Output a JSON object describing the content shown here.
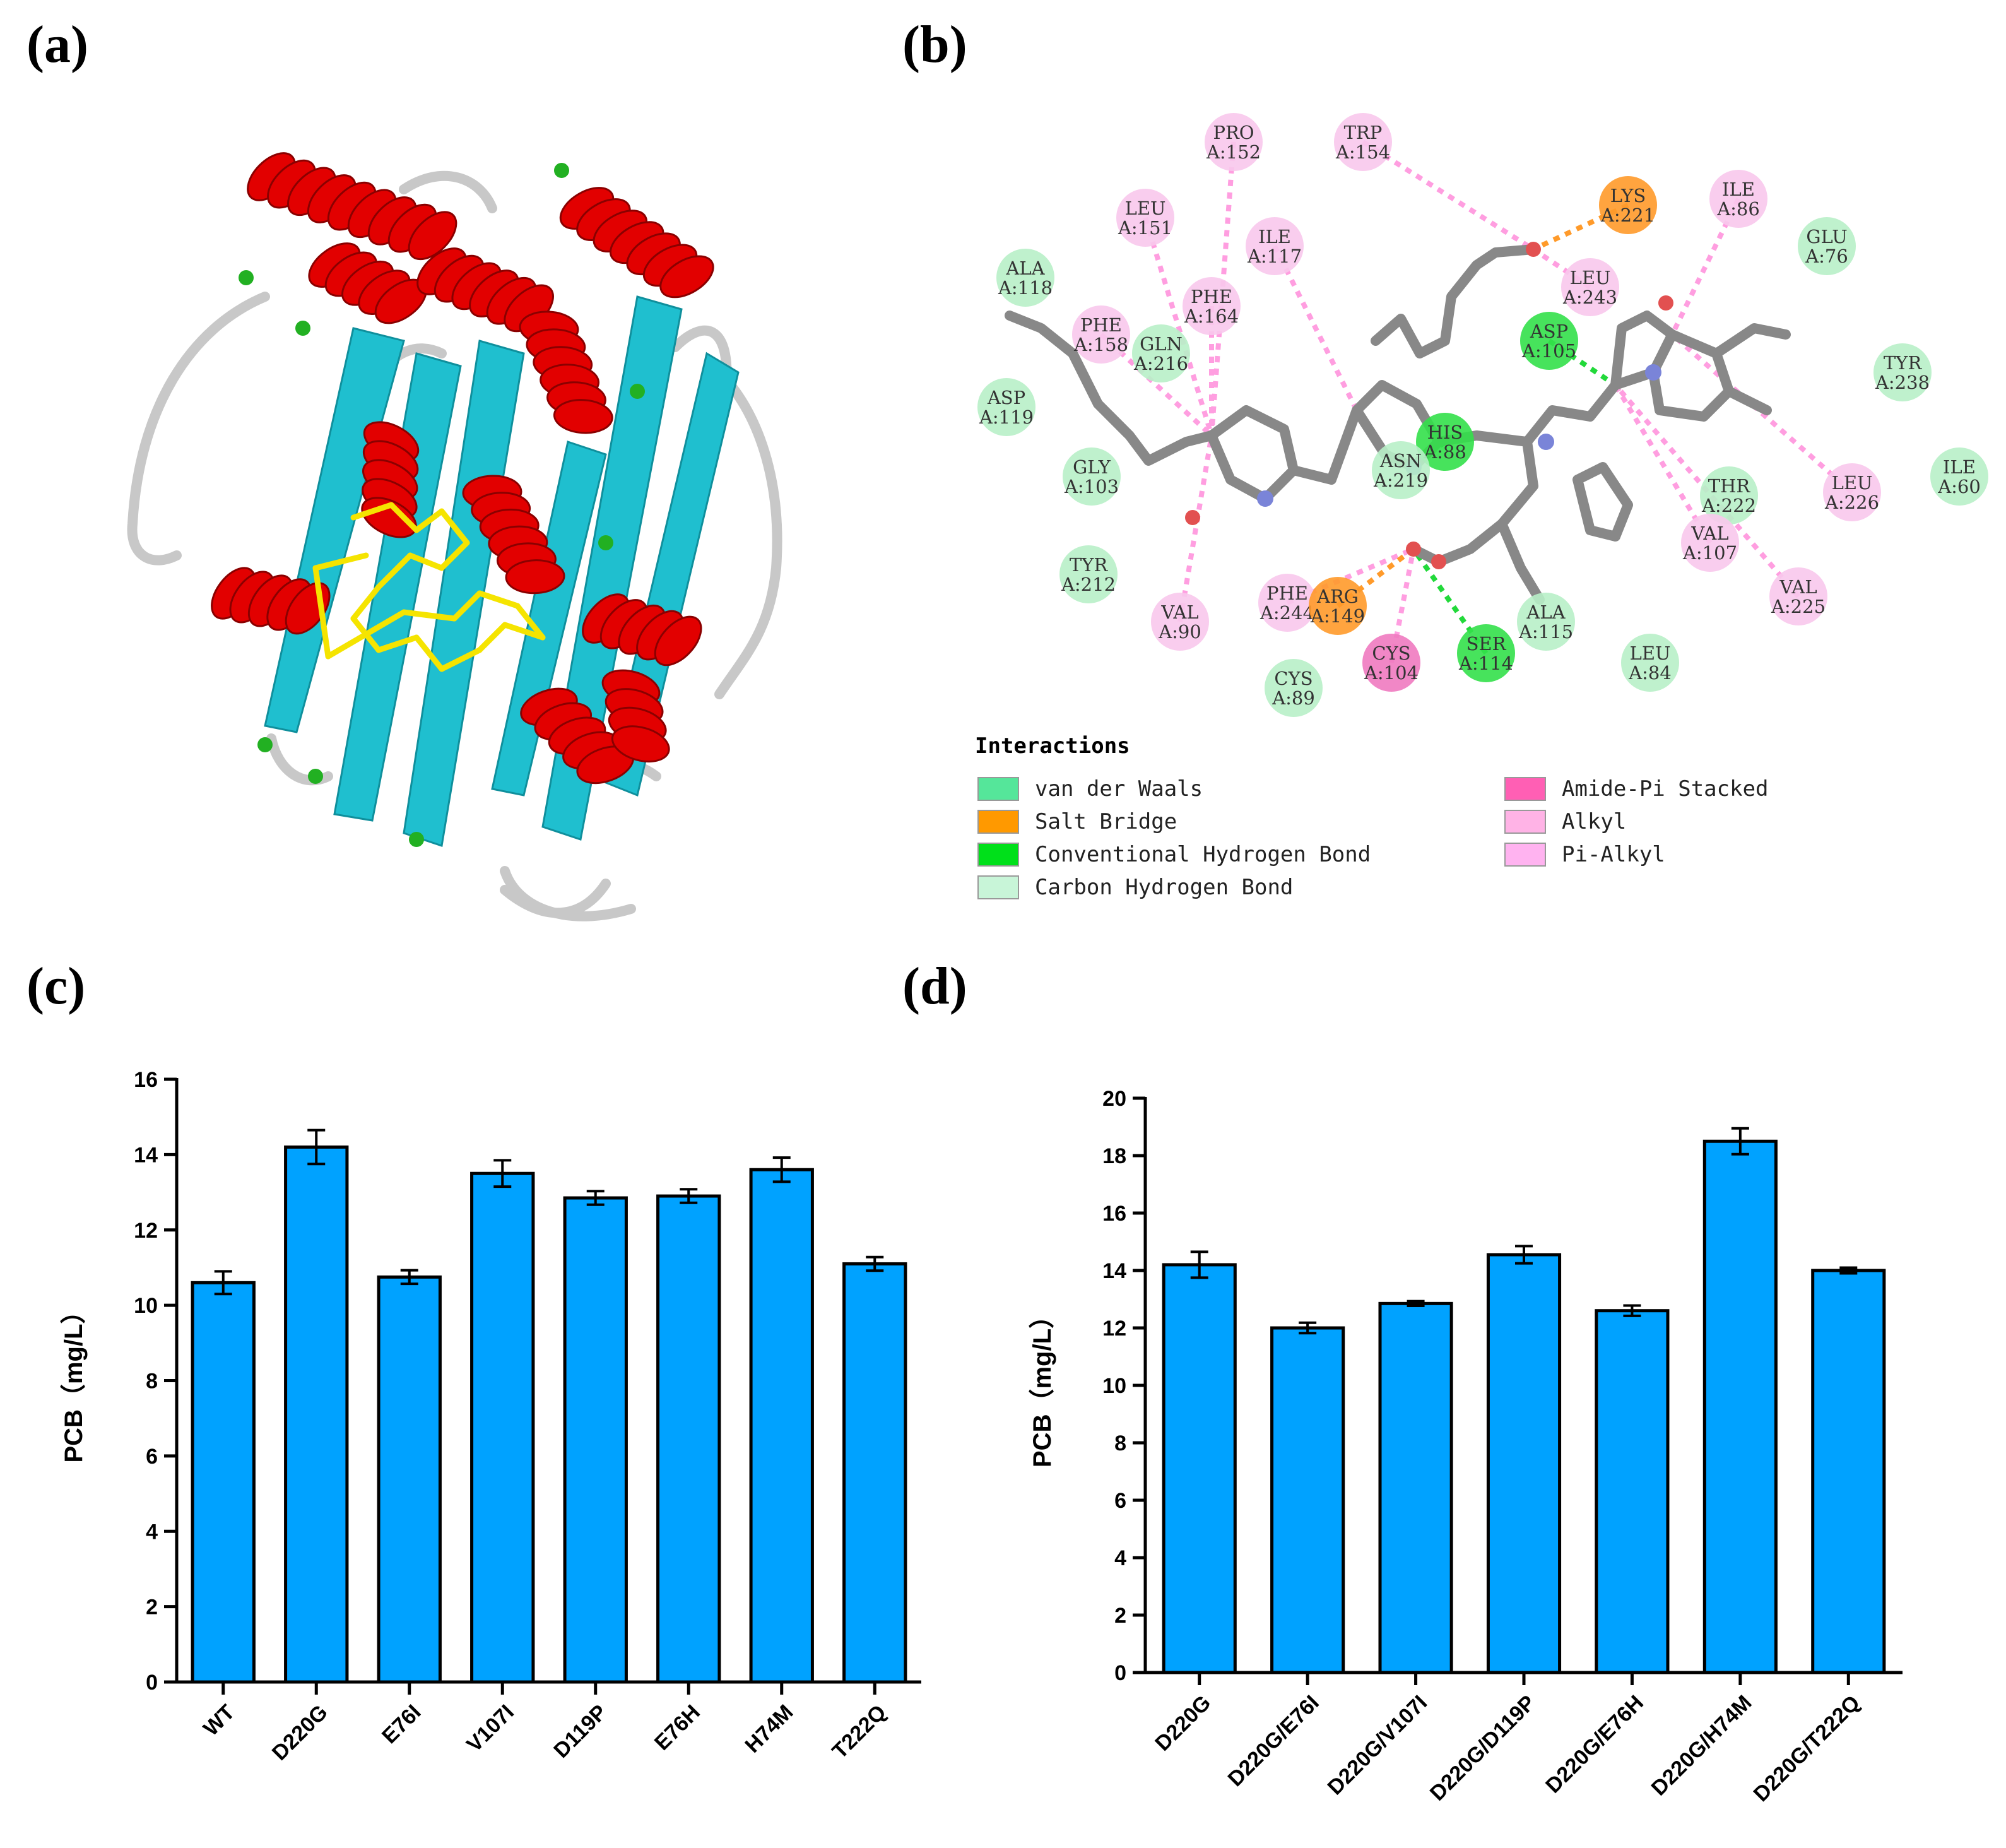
{
  "panels": {
    "a": "(a)",
    "b": "(b)",
    "c": "(c)",
    "d": "(d)"
  },
  "interactions": {
    "title": "Interactions",
    "legend": [
      {
        "label": "van der Waals",
        "color": "#55e69a"
      },
      {
        "label": "Salt Bridge",
        "color": "#ff9900"
      },
      {
        "label": "Conventional Hydrogen Bond",
        "color": "#00e01a"
      },
      {
        "label": "Carbon Hydrogen Bond",
        "color": "#c8f5d8"
      },
      {
        "label": "Amide-Pi Stacked",
        "color": "#ff5fb4"
      },
      {
        "label": "Alkyl",
        "color": "#ffb3e6"
      },
      {
        "label": "Pi-Alkyl",
        "color": "#ffb3f0"
      }
    ],
    "residues": [
      {
        "name": "PRO",
        "id": "A:152",
        "type": "alkyl"
      },
      {
        "name": "TRP",
        "id": "A:154",
        "type": "alkyl"
      },
      {
        "name": "LYS",
        "id": "A:221",
        "type": "salt"
      },
      {
        "name": "ILE",
        "id": "A:86",
        "type": "alkyl"
      },
      {
        "name": "LEU",
        "id": "A:151",
        "type": "alkyl"
      },
      {
        "name": "ILE",
        "id": "A:117",
        "type": "alkyl"
      },
      {
        "name": "LEU",
        "id": "A:243",
        "type": "alkyl"
      },
      {
        "name": "GLU",
        "id": "A:76",
        "type": "vdw"
      },
      {
        "name": "ALA",
        "id": "A:118",
        "type": "vdw"
      },
      {
        "name": "PHE",
        "id": "A:164",
        "type": "alkyl"
      },
      {
        "name": "ASP",
        "id": "A:105",
        "type": "hbond"
      },
      {
        "name": "PHE",
        "id": "A:158",
        "type": "alkyl"
      },
      {
        "name": "GLN",
        "id": "A:216",
        "type": "vdw"
      },
      {
        "name": "TYR",
        "id": "A:238",
        "type": "vdw"
      },
      {
        "name": "ASP",
        "id": "A:119",
        "type": "vdw"
      },
      {
        "name": "HIS",
        "id": "A:88",
        "type": "hbond"
      },
      {
        "name": "ASN",
        "id": "A:219",
        "type": "vdw"
      },
      {
        "name": "GLY",
        "id": "A:103",
        "type": "vdw"
      },
      {
        "name": "THR",
        "id": "A:222",
        "type": "vdw"
      },
      {
        "name": "LEU",
        "id": "A:226",
        "type": "alkyl"
      },
      {
        "name": "ILE",
        "id": "A:60",
        "type": "vdw"
      },
      {
        "name": "VAL",
        "id": "A:107",
        "type": "alkyl"
      },
      {
        "name": "TYR",
        "id": "A:212",
        "type": "vdw"
      },
      {
        "name": "VAL",
        "id": "A:90",
        "type": "alkyl"
      },
      {
        "name": "PHE",
        "id": "A:244",
        "type": "alkyl"
      },
      {
        "name": "ARG",
        "id": "A:149",
        "type": "salt"
      },
      {
        "name": "VAL",
        "id": "A:225",
        "type": "alkyl"
      },
      {
        "name": "ALA",
        "id": "A:115",
        "type": "vdw"
      },
      {
        "name": "SER",
        "id": "A:114",
        "type": "hbond"
      },
      {
        "name": "CYS",
        "id": "A:104",
        "type": "amide"
      },
      {
        "name": "LEU",
        "id": "A:84",
        "type": "vdw"
      },
      {
        "name": "CYS",
        "id": "A:89",
        "type": "vdw"
      }
    ]
  },
  "colors": {
    "bar": "#00a2ff",
    "helix": "#e20000",
    "sheet": "#1fbfcf",
    "coil": "#c8c8c8",
    "turn": "#22b022",
    "ligand": "#f5e400"
  },
  "chart_data": [
    {
      "type": "bar",
      "ylabel": "PCB（mg/L）",
      "ylim": [
        0,
        16
      ],
      "yticks": [
        0,
        2,
        4,
        6,
        8,
        10,
        12,
        14,
        16
      ],
      "categories": [
        "WT",
        "D220G",
        "E76I",
        "V107I",
        "D119P",
        "E76H",
        "H74M",
        "T222Q"
      ],
      "values": [
        10.6,
        14.2,
        10.75,
        13.5,
        12.85,
        12.9,
        13.6,
        11.1
      ],
      "errors": [
        0.3,
        0.45,
        0.18,
        0.35,
        0.18,
        0.18,
        0.32,
        0.18
      ]
    },
    {
      "type": "bar",
      "ylabel": "PCB（mg/L）",
      "ylim": [
        0,
        20
      ],
      "yticks": [
        0,
        2,
        4,
        6,
        8,
        10,
        12,
        14,
        16,
        18,
        20
      ],
      "categories": [
        "D220G",
        "D220G/E76I",
        "D220G/V107I",
        "D220G/D119P",
        "D220G/E76H",
        "D220G/H74M",
        "D220G/T222Q"
      ],
      "values": [
        14.2,
        12.0,
        12.85,
        14.55,
        12.6,
        18.5,
        14.0
      ],
      "errors": [
        0.45,
        0.18,
        0.08,
        0.3,
        0.18,
        0.45,
        0.1
      ]
    }
  ]
}
